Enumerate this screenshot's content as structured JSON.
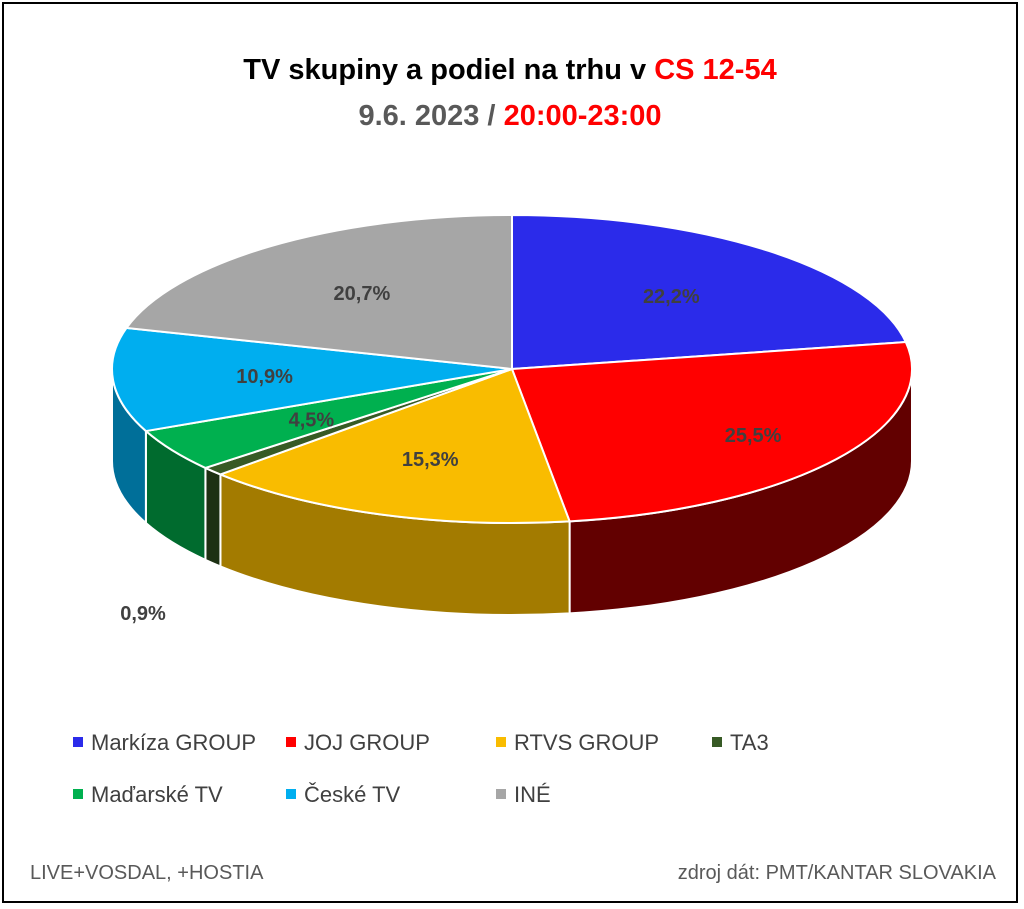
{
  "title": {
    "line1_prefix": "TV skupiny a podiel na trhu v ",
    "line1_highlight": "CS 12-54",
    "line2_prefix": "9.6. 2023 / ",
    "line2_highlight": "20:00-23:00"
  },
  "chart_data": {
    "type": "pie",
    "style": "3d",
    "categories": [
      "Markíza GROUP",
      "JOJ GROUP",
      "RTVS GROUP",
      "TA3",
      "Maďarské  TV",
      "České  TV",
      "INÉ"
    ],
    "values": [
      22.2,
      25.5,
      15.3,
      0.9,
      4.5,
      10.9,
      20.7
    ],
    "labels": [
      "22,2%",
      "25,5%",
      "15,3%",
      "0,9%",
      "4,5%",
      "10,9%",
      "20,7%"
    ],
    "colors": [
      "#2b2bea",
      "#ff0000",
      "#f9bc00",
      "#375a25",
      "#00b04f",
      "#00aeef",
      "#a6a6a6"
    ],
    "side_colors": [
      "#16168a",
      "#620000",
      "#a37b00",
      "#1d3113",
      "#006b2e",
      "#006f99",
      "#6b6b6b"
    ],
    "legend_placement": "bottom"
  },
  "footer": {
    "left": "LIVE+VOSDAL, +HOSTIA",
    "right": "zdroj dát: PMT/KANTAR SLOVAKIA"
  }
}
